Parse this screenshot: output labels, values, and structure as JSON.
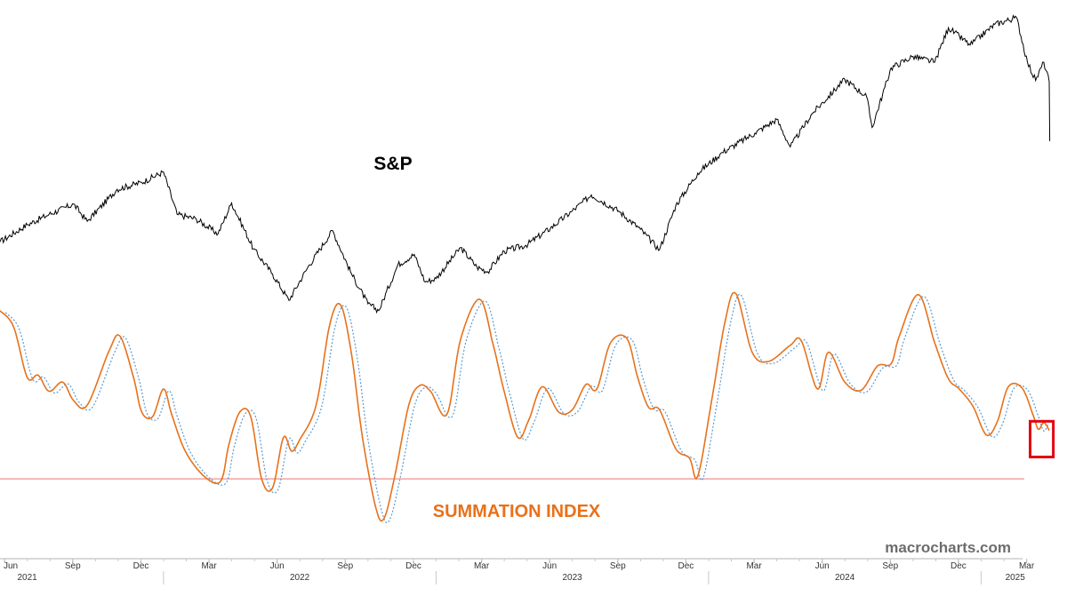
{
  "chart_data": {
    "type": "line",
    "labels": {
      "sp": "S&P",
      "summation": "SUMMATION INDEX",
      "watermark": "macrocharts.com"
    },
    "x_axis": {
      "months": [
        {
          "label": "Jun",
          "t": 2021.417
        },
        {
          "label": "Sep",
          "t": 2021.667
        },
        {
          "label": "Dec",
          "t": 2021.917
        },
        {
          "label": "Mar",
          "t": 2022.167
        },
        {
          "label": "Jun",
          "t": 2022.417
        },
        {
          "label": "Sep",
          "t": 2022.667
        },
        {
          "label": "Dec",
          "t": 2022.917
        },
        {
          "label": "Mar",
          "t": 2023.167
        },
        {
          "label": "Jun",
          "t": 2023.417
        },
        {
          "label": "Sep",
          "t": 2023.667
        },
        {
          "label": "Dec",
          "t": 2023.917
        },
        {
          "label": "Mar",
          "t": 2024.167
        },
        {
          "label": "Jun",
          "t": 2024.417
        },
        {
          "label": "Sep",
          "t": 2024.667
        },
        {
          "label": "Dec",
          "t": 2024.917
        },
        {
          "label": "Mar",
          "t": 2025.167
        }
      ],
      "years": [
        {
          "label": "2021",
          "t": 2021.5
        },
        {
          "label": "2022",
          "t": 2022.5
        },
        {
          "label": "2023",
          "t": 2023.5
        },
        {
          "label": "2024",
          "t": 2024.5
        },
        {
          "label": "2025",
          "t": 2025.125
        }
      ],
      "range": [
        2021.4,
        2025.25
      ]
    },
    "series": [
      {
        "key": "sp",
        "color": "#000000",
        "ylim": [
          3500,
          6200
        ],
        "points": [
          [
            2021.4,
            4180
          ],
          [
            2021.5,
            4330
          ],
          [
            2021.58,
            4420
          ],
          [
            2021.67,
            4510
          ],
          [
            2021.72,
            4360
          ],
          [
            2021.83,
            4640
          ],
          [
            2021.92,
            4700
          ],
          [
            2022.0,
            4790
          ],
          [
            2022.05,
            4420
          ],
          [
            2022.12,
            4380
          ],
          [
            2022.2,
            4250
          ],
          [
            2022.25,
            4520
          ],
          [
            2022.33,
            4120
          ],
          [
            2022.4,
            3900
          ],
          [
            2022.46,
            3670
          ],
          [
            2022.53,
            3960
          ],
          [
            2022.62,
            4280
          ],
          [
            2022.69,
            3900
          ],
          [
            2022.75,
            3640
          ],
          [
            2022.79,
            3580
          ],
          [
            2022.86,
            3980
          ],
          [
            2022.92,
            4070
          ],
          [
            2022.96,
            3830
          ],
          [
            2023.0,
            3860
          ],
          [
            2023.09,
            4130
          ],
          [
            2023.15,
            3960
          ],
          [
            2023.19,
            3920
          ],
          [
            2023.25,
            4100
          ],
          [
            2023.33,
            4150
          ],
          [
            2023.42,
            4300
          ],
          [
            2023.5,
            4450
          ],
          [
            2023.57,
            4590
          ],
          [
            2023.67,
            4450
          ],
          [
            2023.75,
            4290
          ],
          [
            2023.82,
            4110
          ],
          [
            2023.88,
            4500
          ],
          [
            2023.96,
            4780
          ],
          [
            2024.05,
            4960
          ],
          [
            2024.17,
            5130
          ],
          [
            2024.25,
            5250
          ],
          [
            2024.3,
            5010
          ],
          [
            2024.38,
            5300
          ],
          [
            2024.5,
            5600
          ],
          [
            2024.58,
            5450
          ],
          [
            2024.6,
            5180
          ],
          [
            2024.67,
            5700
          ],
          [
            2024.75,
            5800
          ],
          [
            2024.83,
            5750
          ],
          [
            2024.88,
            6050
          ],
          [
            2024.96,
            5900
          ],
          [
            2025.05,
            6080
          ],
          [
            2025.13,
            6140
          ],
          [
            2025.17,
            5750
          ],
          [
            2025.2,
            5590
          ],
          [
            2025.23,
            5750
          ],
          [
            2025.25,
            5580
          ],
          [
            2025.252,
            5060
          ]
        ]
      },
      {
        "key": "summation",
        "color": "#e8711a",
        "ylim": [
          -1100,
          1400
        ],
        "points": [
          [
            2021.4,
            1000
          ],
          [
            2021.45,
            860
          ],
          [
            2021.5,
            420
          ],
          [
            2021.54,
            440
          ],
          [
            2021.58,
            300
          ],
          [
            2021.63,
            380
          ],
          [
            2021.67,
            220
          ],
          [
            2021.72,
            180
          ],
          [
            2021.8,
            650
          ],
          [
            2021.84,
            780
          ],
          [
            2021.89,
            420
          ],
          [
            2021.92,
            120
          ],
          [
            2021.96,
            80
          ],
          [
            2022.0,
            320
          ],
          [
            2022.03,
            100
          ],
          [
            2022.08,
            -220
          ],
          [
            2022.15,
            -440
          ],
          [
            2022.21,
            -480
          ],
          [
            2022.24,
            -160
          ],
          [
            2022.28,
            120
          ],
          [
            2022.32,
            80
          ],
          [
            2022.36,
            -460
          ],
          [
            2022.4,
            -540
          ],
          [
            2022.44,
            -100
          ],
          [
            2022.47,
            -220
          ],
          [
            2022.5,
            -120
          ],
          [
            2022.56,
            180
          ],
          [
            2022.61,
            880
          ],
          [
            2022.65,
            1050
          ],
          [
            2022.69,
            620
          ],
          [
            2022.73,
            -100
          ],
          [
            2022.78,
            -720
          ],
          [
            2022.81,
            -800
          ],
          [
            2022.85,
            -420
          ],
          [
            2022.9,
            180
          ],
          [
            2022.94,
            350
          ],
          [
            2022.98,
            300
          ],
          [
            2023.04,
            100
          ],
          [
            2023.09,
            750
          ],
          [
            2023.16,
            1100
          ],
          [
            2023.21,
            700
          ],
          [
            2023.25,
            300
          ],
          [
            2023.3,
            -100
          ],
          [
            2023.34,
            50
          ],
          [
            2023.39,
            340
          ],
          [
            2023.45,
            120
          ],
          [
            2023.5,
            140
          ],
          [
            2023.55,
            360
          ],
          [
            2023.59,
            320
          ],
          [
            2023.64,
            720
          ],
          [
            2023.7,
            760
          ],
          [
            2023.74,
            420
          ],
          [
            2023.78,
            160
          ],
          [
            2023.82,
            140
          ],
          [
            2023.88,
            -200
          ],
          [
            2023.93,
            -280
          ],
          [
            2023.96,
            -440
          ],
          [
            2024.01,
            200
          ],
          [
            2024.06,
            900
          ],
          [
            2024.1,
            1150
          ],
          [
            2024.16,
            640
          ],
          [
            2024.22,
            560
          ],
          [
            2024.3,
            700
          ],
          [
            2024.34,
            740
          ],
          [
            2024.4,
            320
          ],
          [
            2024.44,
            640
          ],
          [
            2024.5,
            380
          ],
          [
            2024.56,
            310
          ],
          [
            2024.62,
            520
          ],
          [
            2024.67,
            540
          ],
          [
            2024.7,
            780
          ],
          [
            2024.77,
            1140
          ],
          [
            2024.83,
            720
          ],
          [
            2024.88,
            410
          ],
          [
            2024.92,
            320
          ],
          [
            2024.97,
            170
          ],
          [
            2025.02,
            -80
          ],
          [
            2025.06,
            40
          ],
          [
            2025.1,
            340
          ],
          [
            2025.15,
            330
          ],
          [
            2025.19,
            100
          ],
          [
            2025.21,
            -30
          ],
          [
            2025.23,
            30
          ],
          [
            2025.25,
            -40
          ]
        ]
      },
      {
        "key": "summation-avg",
        "color": "#5b9bd5",
        "ylim": [
          -1100,
          1400
        ],
        "lag": 0.02
      }
    ],
    "reference_line": {
      "value": -460,
      "color": "#f2a2a2"
    },
    "highlight_box": {
      "t0": 2025.18,
      "t1": 2025.265,
      "y0": 40,
      "y1": -270,
      "color": "#e3000f"
    }
  }
}
